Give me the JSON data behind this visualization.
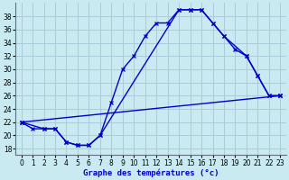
{
  "title": "Graphe des températures (°c)",
  "background_color": "#c8eaf0",
  "grid_color": "#a8ccd8",
  "line_color": "#0000cc",
  "x_ticks": [
    0,
    1,
    2,
    3,
    4,
    5,
    6,
    7,
    8,
    9,
    10,
    11,
    12,
    13,
    14,
    15,
    16,
    17,
    18,
    19,
    20,
    21,
    22,
    23
  ],
  "y_ticks": [
    18,
    20,
    22,
    24,
    26,
    28,
    30,
    32,
    34,
    36,
    38
  ],
  "ylim": [
    17.0,
    40.0
  ],
  "xlim": [
    -0.5,
    23.5
  ],
  "line1_x": [
    0,
    1,
    2,
    3,
    4,
    5,
    6,
    7,
    8,
    9,
    10,
    11,
    12,
    13,
    14,
    15,
    16,
    17,
    18,
    19,
    20,
    21,
    22,
    23
  ],
  "line1_y": [
    22,
    21,
    21,
    21,
    19,
    18.5,
    18.5,
    20,
    25,
    30,
    32,
    35,
    37,
    37,
    39,
    39,
    39,
    37,
    35,
    33,
    32,
    29,
    26,
    26
  ],
  "line2_x": [
    0,
    2,
    3,
    4,
    5,
    6,
    7,
    14,
    15,
    16,
    17,
    18,
    20,
    21,
    22,
    23
  ],
  "line2_y": [
    22,
    21,
    21,
    19,
    18.5,
    18.5,
    20,
    39,
    39,
    39,
    37,
    35,
    32,
    29,
    26,
    26
  ],
  "line3_x": [
    0,
    23
  ],
  "line3_y": [
    22,
    26
  ]
}
